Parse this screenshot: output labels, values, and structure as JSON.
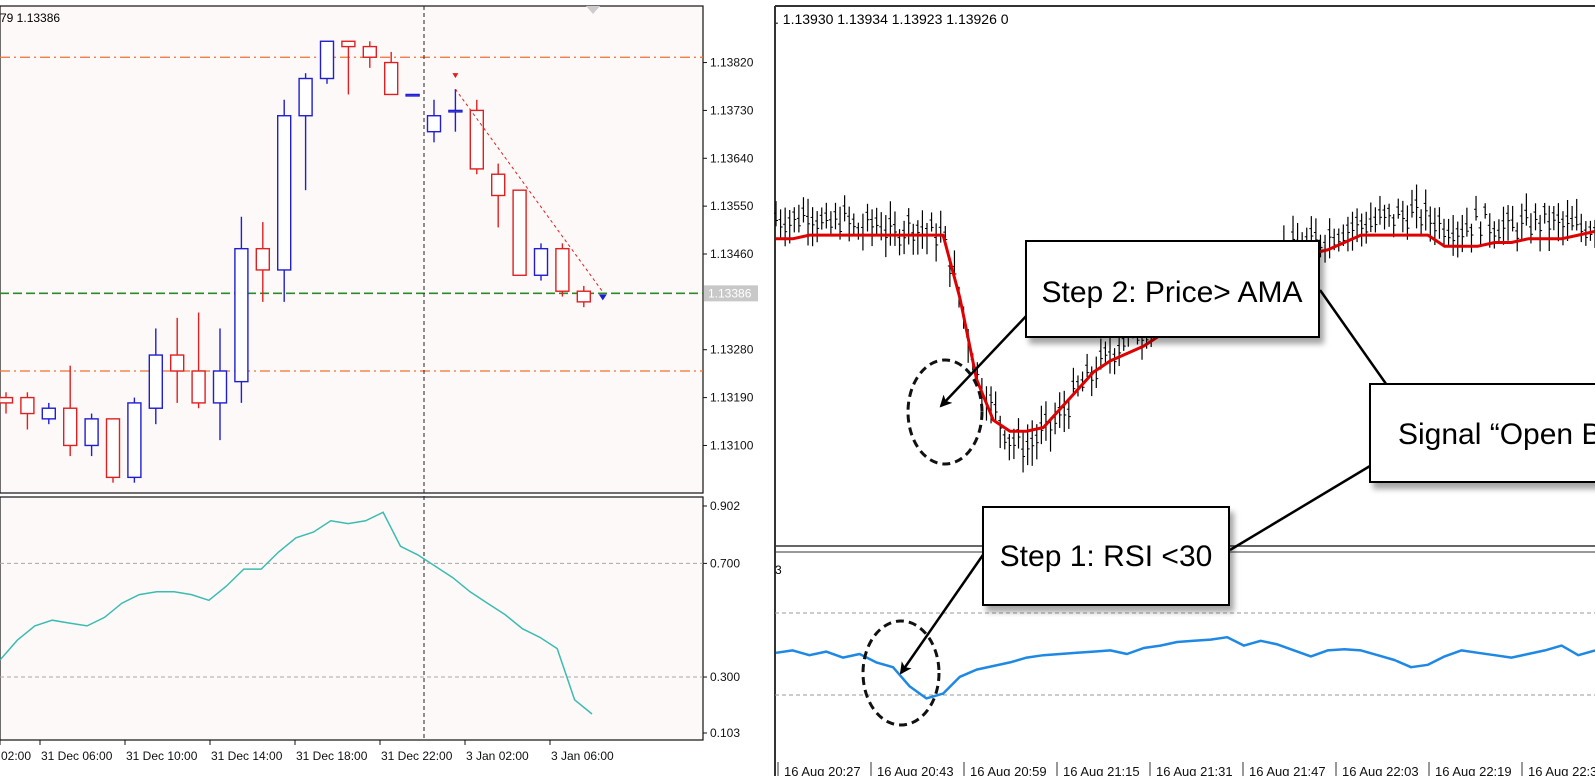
{
  "left_panel": {
    "header_text": "79 1.13386",
    "price_label": "1.13386",
    "colors": {
      "bg": "#fdf9f8",
      "bull": "#1f1fd0",
      "bear": "#e02020",
      "level": "#f07030",
      "current": "#2a8a2a",
      "osc": "#3cbcb0",
      "cursor": "#222222"
    }
  },
  "right_panel": {
    "header_text": ". 1.13930 1.13934 1.13923 1.13926  0",
    "osc_label": "3",
    "colors": {
      "price": "#000000",
      "ama": "#e00000",
      "rsi": "#1e88e5"
    },
    "callouts": {
      "step2": "Step 2: Price> AMA",
      "step1": "Step 1: RSI <30",
      "signal": "Signal “Open Bu"
    }
  },
  "chart_data": [
    {
      "type": "candlestick",
      "ytick_labels": [
        "1.13820",
        "1.13730",
        "1.13640",
        "1.13550",
        "1.13460",
        "1.13370",
        "1.13280",
        "1.13190",
        "1.13100"
      ],
      "ylim": [
        1.1302,
        1.139
      ],
      "xtick_labels": [
        "02:00",
        "31 Dec 06:00",
        "31 Dec 10:00",
        "31 Dec 14:00",
        "31 Dec 18:00",
        "31 Dec 22:00",
        "3 Jan 02:00",
        "3 Jan 06:00"
      ],
      "levels": [
        1.1383,
        1.1386,
        1.1324
      ],
      "candles": [
        {
          "o": 1.1319,
          "h": 1.132,
          "l": 1.1316,
          "c": 1.1318
        },
        {
          "o": 1.1319,
          "h": 1.132,
          "l": 1.1313,
          "c": 1.1316
        },
        {
          "o": 1.1315,
          "h": 1.1318,
          "l": 1.1314,
          "c": 1.1317
        },
        {
          "o": 1.1317,
          "h": 1.1325,
          "l": 1.1308,
          "c": 1.131
        },
        {
          "o": 1.131,
          "h": 1.1316,
          "l": 1.1308,
          "c": 1.1315
        },
        {
          "o": 1.1315,
          "h": 1.1315,
          "l": 1.1303,
          "c": 1.1304
        },
        {
          "o": 1.1304,
          "h": 1.1319,
          "l": 1.1303,
          "c": 1.1318
        },
        {
          "o": 1.1317,
          "h": 1.1332,
          "l": 1.1314,
          "c": 1.1327
        },
        {
          "o": 1.1327,
          "h": 1.1334,
          "l": 1.1318,
          "c": 1.1324
        },
        {
          "o": 1.1324,
          "h": 1.1335,
          "l": 1.1317,
          "c": 1.1318
        },
        {
          "o": 1.1318,
          "h": 1.1332,
          "l": 1.1311,
          "c": 1.1324
        },
        {
          "o": 1.1322,
          "h": 1.1353,
          "l": 1.1318,
          "c": 1.1347
        },
        {
          "o": 1.1347,
          "h": 1.1352,
          "l": 1.1337,
          "c": 1.1343
        },
        {
          "o": 1.1343,
          "h": 1.1375,
          "l": 1.1337,
          "c": 1.1372
        },
        {
          "o": 1.1372,
          "h": 1.138,
          "l": 1.1358,
          "c": 1.1379
        },
        {
          "o": 1.1379,
          "h": 1.1386,
          "l": 1.1378,
          "c": 1.1386
        },
        {
          "o": 1.1386,
          "h": 1.1386,
          "l": 1.1376,
          "c": 1.1385
        },
        {
          "o": 1.1385,
          "h": 1.1386,
          "l": 1.1381,
          "c": 1.1383
        },
        {
          "o": 1.1382,
          "h": 1.1384,
          "l": 1.1376,
          "c": 1.1376
        },
        {
          "o": 1.1376,
          "h": 1.1376,
          "l": 1.1376,
          "c": 1.1376
        },
        {
          "o": 1.1369,
          "h": 1.1375,
          "l": 1.1367,
          "c": 1.1372
        },
        {
          "o": 1.1373,
          "h": 1.1377,
          "l": 1.1369,
          "c": 1.1373
        },
        {
          "o": 1.1373,
          "h": 1.1375,
          "l": 1.1361,
          "c": 1.1362
        },
        {
          "o": 1.1361,
          "h": 1.1363,
          "l": 1.1351,
          "c": 1.1357
        },
        {
          "o": 1.1358,
          "h": 1.1358,
          "l": 1.1342,
          "c": 1.1342
        },
        {
          "o": 1.1342,
          "h": 1.1348,
          "l": 1.1341,
          "c": 1.1347
        },
        {
          "o": 1.1347,
          "h": 1.1348,
          "l": 1.1338,
          "c": 1.1339
        },
        {
          "o": 1.1339,
          "h": 1.134,
          "l": 1.1336,
          "c": 1.1337
        }
      ],
      "current_price": 1.13386
    },
    {
      "type": "line",
      "ytick_labels": [
        "0.902",
        "0.700",
        "0.300",
        "0.103"
      ],
      "ylim": [
        0.103,
        0.902
      ],
      "levels": [
        0.7,
        0.3
      ],
      "values": [
        0.36,
        0.43,
        0.48,
        0.5,
        0.49,
        0.48,
        0.51,
        0.56,
        0.59,
        0.6,
        0.6,
        0.59,
        0.57,
        0.62,
        0.68,
        0.68,
        0.74,
        0.79,
        0.81,
        0.85,
        0.84,
        0.85,
        0.88,
        0.76,
        0.73,
        0.69,
        0.65,
        0.6,
        0.56,
        0.52,
        0.47,
        0.44,
        0.4,
        0.22,
        0.17
      ]
    },
    {
      "type": "line",
      "xtick_labels": [
        "16 Aug 20:27",
        "16 Aug 20:43",
        "16 Aug 20:59",
        "16 Aug 21:15",
        "16 Aug 21:31",
        "16 Aug 21:47",
        "16 Aug 22:03",
        "16 Aug 22:19",
        "16 Aug 22:3"
      ],
      "series": [
        {
          "kind": "price",
          "values": [
            0.82,
            0.81,
            0.84,
            0.79,
            0.82,
            0.78,
            0.81,
            0.77,
            0.8,
            0.78,
            0.77,
            0.6,
            0.4,
            0.3,
            0.22,
            0.2,
            0.24,
            0.28,
            0.35,
            0.4,
            0.45,
            0.5,
            0.52,
            0.55,
            0.57,
            0.6,
            0.62,
            0.64,
            0.66,
            0.7,
            0.72,
            0.74,
            0.75,
            0.77,
            0.79,
            0.8,
            0.81,
            0.82,
            0.83,
            0.82,
            0.8,
            0.79,
            0.81,
            0.8,
            0.79,
            0.8,
            0.81,
            0.8,
            0.79,
            0.8
          ]
        },
        {
          "kind": "ama",
          "values": [
            0.76,
            0.76,
            0.77,
            0.77,
            0.77,
            0.77,
            0.77,
            0.77,
            0.77,
            0.77,
            0.77,
            0.6,
            0.38,
            0.27,
            0.24,
            0.24,
            0.25,
            0.3,
            0.35,
            0.4,
            0.43,
            0.45,
            0.47,
            0.5,
            0.52,
            0.56,
            0.6,
            0.63,
            0.66,
            0.68,
            0.69,
            0.7,
            0.72,
            0.73,
            0.75,
            0.77,
            0.77,
            0.77,
            0.77,
            0.77,
            0.74,
            0.74,
            0.74,
            0.75,
            0.75,
            0.76,
            0.76,
            0.76,
            0.77,
            0.78
          ]
        },
        {
          "kind": "rsi",
          "values": [
            0.56,
            0.58,
            0.54,
            0.57,
            0.52,
            0.55,
            0.48,
            0.44,
            0.28,
            0.18,
            0.22,
            0.36,
            0.42,
            0.45,
            0.48,
            0.52,
            0.54,
            0.55,
            0.56,
            0.57,
            0.58,
            0.55,
            0.6,
            0.62,
            0.65,
            0.66,
            0.67,
            0.69,
            0.62,
            0.66,
            0.63,
            0.58,
            0.53,
            0.58,
            0.59,
            0.58,
            0.54,
            0.5,
            0.44,
            0.46,
            0.53,
            0.58,
            0.56,
            0.54,
            0.52,
            0.55,
            0.58,
            0.62,
            0.54,
            0.58
          ]
        }
      ]
    }
  ]
}
